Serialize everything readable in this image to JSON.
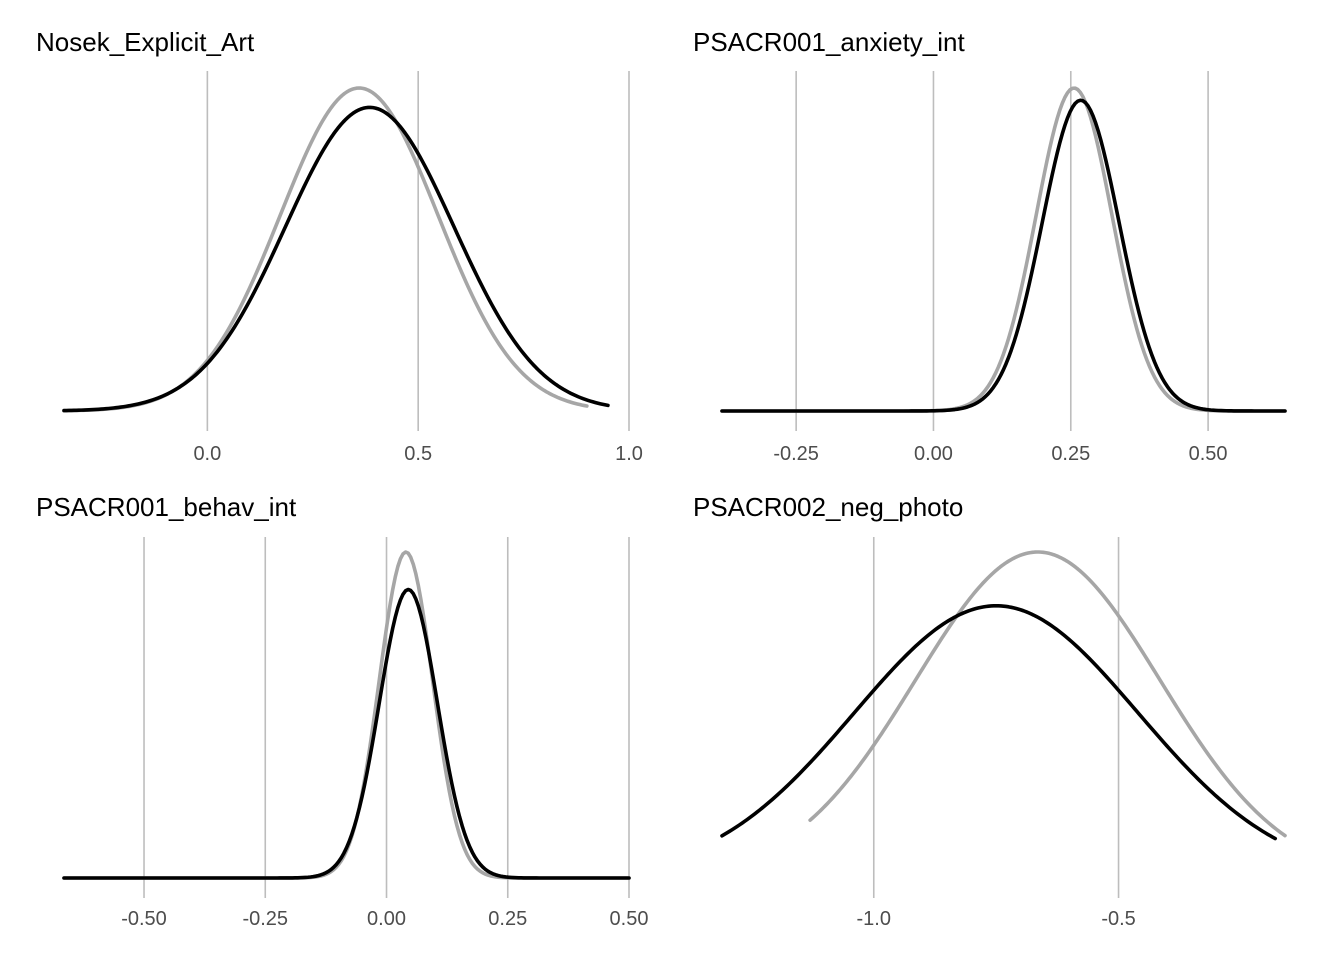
{
  "chart_data": [
    {
      "type": "line",
      "title": "Nosek_Explicit_Art",
      "xlabel": "",
      "ylabel": "",
      "x_ticks": [
        0.0,
        0.5,
        1.0
      ],
      "x_tick_labels": [
        "0.0",
        "0.5",
        "1.0"
      ],
      "xlim": [
        -0.34,
        1.0
      ],
      "grid": "vertical major gridlines only",
      "series": [
        {
          "color": "#a6a6a6",
          "x_range": [
            -0.34,
            0.9
          ],
          "distribution": "normal",
          "mean": 0.36,
          "sd": 0.187,
          "relative_peak": 1.0
        },
        {
          "color": "#000000",
          "x_range": [
            -0.34,
            0.95
          ],
          "distribution": "normal",
          "mean": 0.385,
          "sd": 0.2,
          "relative_peak": 0.94
        }
      ]
    },
    {
      "type": "line",
      "title": "PSACR001_anxiety_int",
      "xlabel": "",
      "ylabel": "",
      "x_ticks": [
        -0.25,
        0.0,
        0.25,
        0.5
      ],
      "x_tick_labels": [
        "-0.25",
        "0.00",
        "0.25",
        "0.50"
      ],
      "xlim": [
        -0.385,
        0.64
      ],
      "grid": "vertical major gridlines only",
      "series": [
        {
          "color": "#a6a6a6",
          "x_range": [
            -0.385,
            0.64
          ],
          "distribution": "normal",
          "mean": 0.256,
          "sd": 0.069,
          "relative_peak": 1.0
        },
        {
          "color": "#000000",
          "x_range": [
            -0.385,
            0.64
          ],
          "distribution": "normal",
          "mean": 0.268,
          "sd": 0.07,
          "relative_peak": 0.962
        }
      ]
    },
    {
      "type": "line",
      "title": "PSACR001_behav_int",
      "xlabel": "",
      "ylabel": "",
      "x_ticks": [
        -0.5,
        -0.25,
        0.0,
        0.25,
        0.5
      ],
      "x_tick_labels": [
        "-0.50",
        "-0.25",
        "0.00",
        "0.25",
        "0.50"
      ],
      "xlim": [
        -0.665,
        0.5
      ],
      "grid": "vertical major gridlines only",
      "series": [
        {
          "color": "#a6a6a6",
          "x_range": [
            -0.665,
            0.5
          ],
          "distribution": "normal",
          "mean": 0.04,
          "sd": 0.055,
          "relative_peak": 1.0
        },
        {
          "color": "#000000",
          "x_range": [
            -0.665,
            0.5
          ],
          "distribution": "normal",
          "mean": 0.045,
          "sd": 0.06,
          "relative_peak": 0.885
        }
      ]
    },
    {
      "type": "line",
      "title": "PSACR002_neg_photo",
      "xlabel": "",
      "ylabel": "",
      "x_ticks": [
        -1.0,
        -0.5
      ],
      "x_tick_labels": [
        "-1.0",
        "-0.5"
      ],
      "xlim": [
        -1.31,
        -0.16
      ],
      "grid": "vertical major gridlines only",
      "series": [
        {
          "color": "#a6a6a6",
          "x_range": [
            -1.13,
            -0.16
          ],
          "distribution": "normal",
          "mean": -0.665,
          "sd": 0.25,
          "relative_peak": 1.0
        },
        {
          "color": "#000000",
          "x_range": [
            -1.31,
            -0.18
          ],
          "distribution": "normal",
          "mean": -0.75,
          "sd": 0.29,
          "relative_peak": 0.835
        }
      ]
    }
  ]
}
